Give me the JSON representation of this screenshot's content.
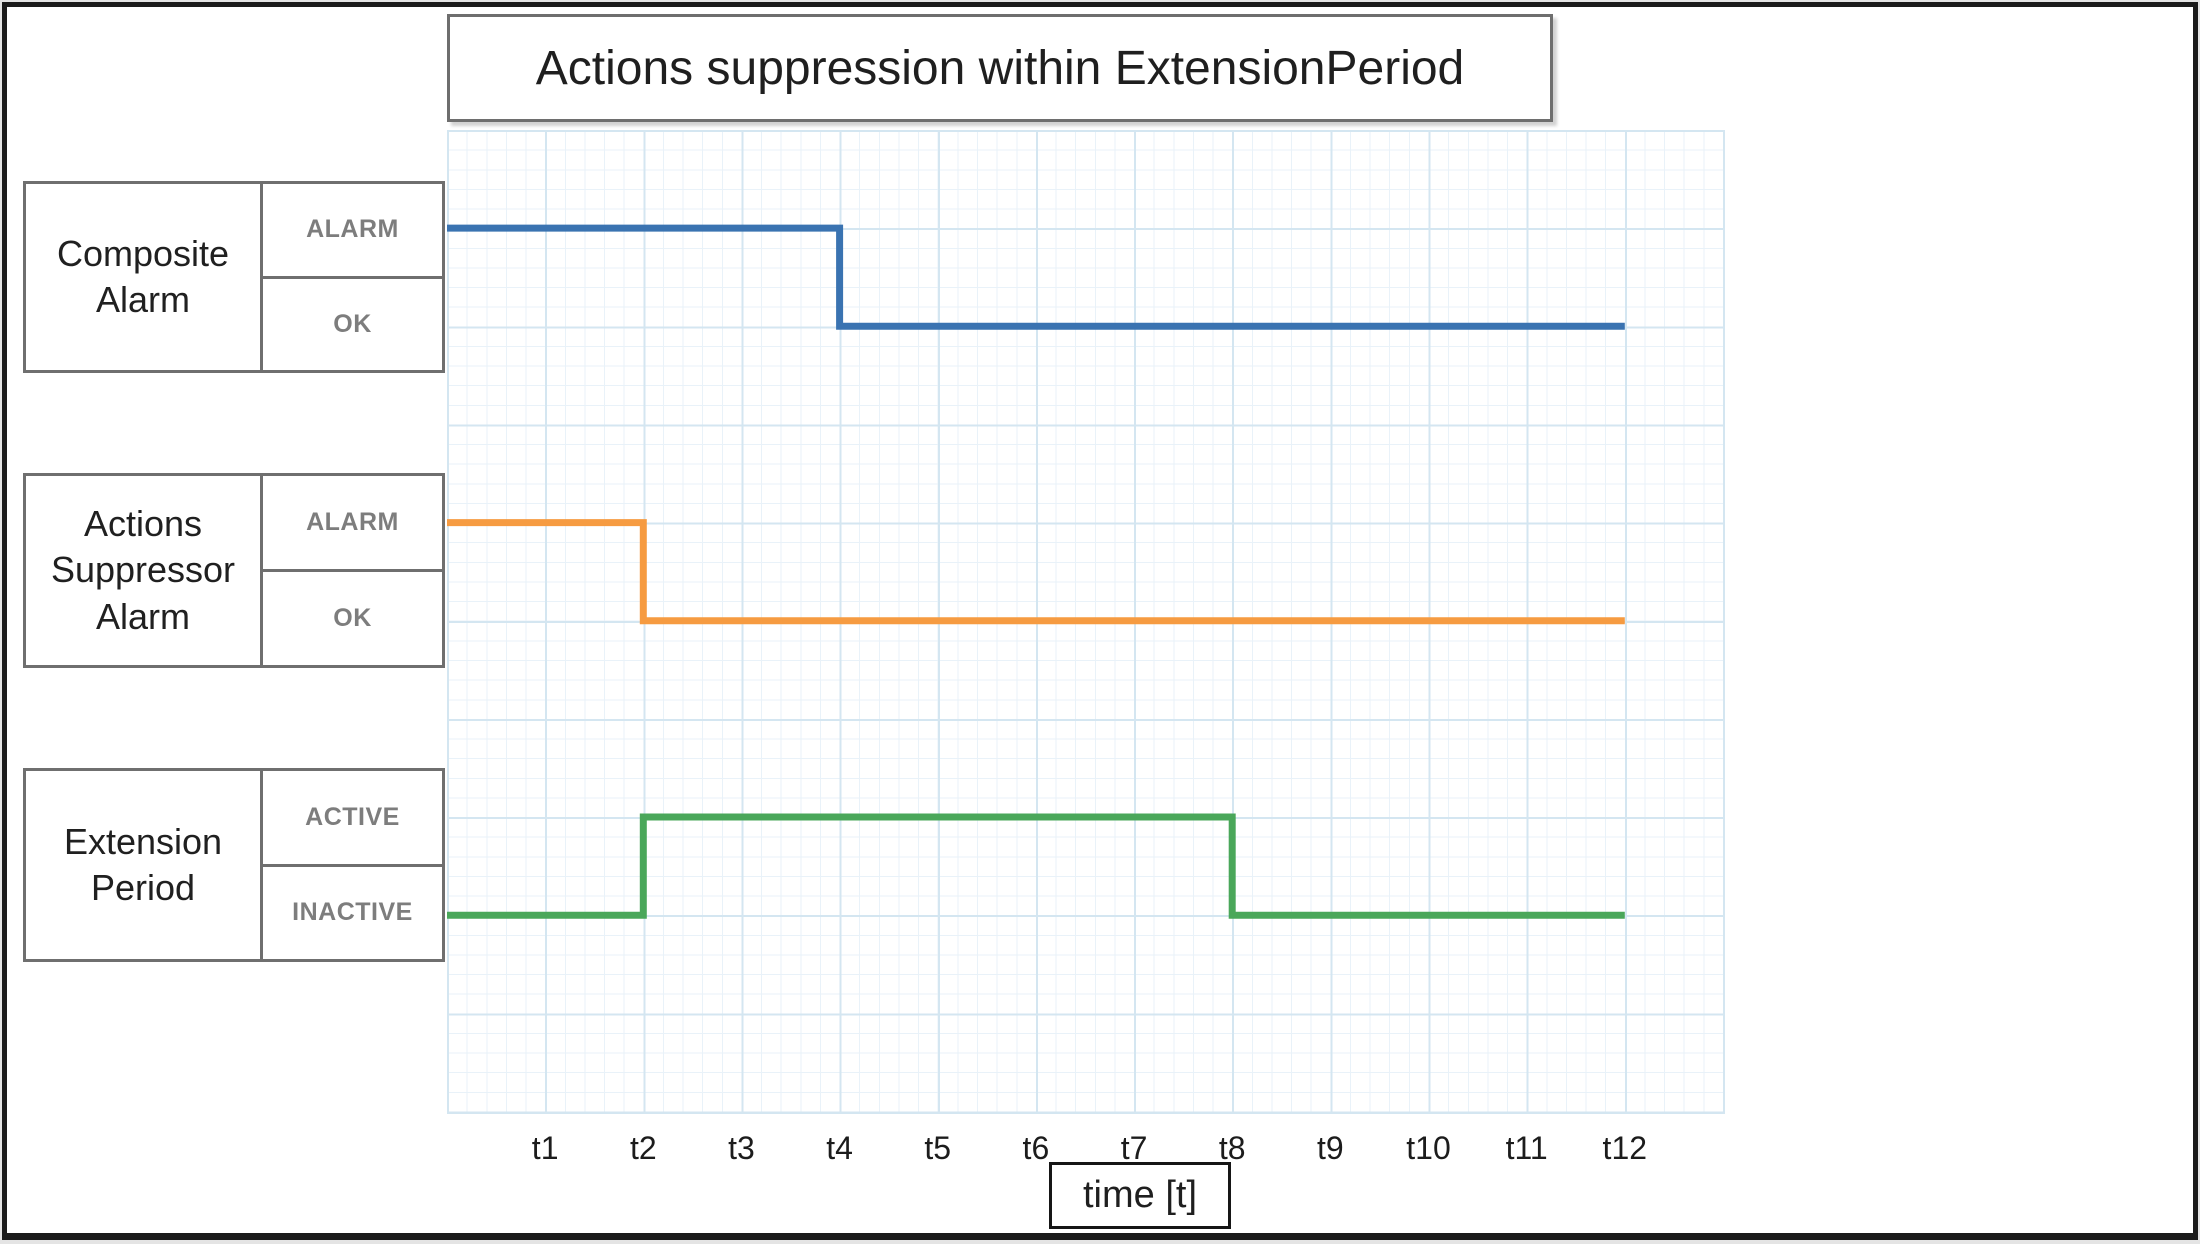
{
  "title": "Actions suppression within ExtensionPeriod",
  "x_axis": {
    "label": "time [t]",
    "ticks": [
      "t1",
      "t2",
      "t3",
      "t4",
      "t5",
      "t6",
      "t7",
      "t8",
      "t9",
      "t10",
      "t11",
      "t12"
    ]
  },
  "colors": {
    "composite_line": "#3a73b1",
    "suppressor_line": "#f69b41",
    "extension_line": "#4aa75a",
    "grid_major": "#d4e6f1",
    "grid_minor": "#e9f2f9",
    "box_border": "#6f6f6f",
    "state_text": "#7d7d7d",
    "frame_border": "#1b1b1b"
  },
  "signals": [
    {
      "id": "composite",
      "name": "Composite Alarm",
      "states": [
        "ALARM",
        "OK"
      ],
      "color": "#3a73b1",
      "timeline": [
        {
          "state": "ALARM",
          "from": 0,
          "to": 4
        },
        {
          "state": "OK",
          "from": 4,
          "to": 12
        }
      ]
    },
    {
      "id": "suppressor",
      "name": "Actions Suppressor Alarm",
      "states": [
        "ALARM",
        "OK"
      ],
      "color": "#f69b41",
      "timeline": [
        {
          "state": "ALARM",
          "from": 0,
          "to": 2
        },
        {
          "state": "OK",
          "from": 2,
          "to": 12
        }
      ]
    },
    {
      "id": "extension",
      "name": "Extension Period",
      "states": [
        "ACTIVE",
        "INACTIVE"
      ],
      "color": "#4aa75a",
      "timeline": [
        {
          "state": "INACTIVE",
          "from": 0,
          "to": 2
        },
        {
          "state": "ACTIVE",
          "from": 2,
          "to": 8
        },
        {
          "state": "INACTIVE",
          "from": 8,
          "to": 12
        }
      ]
    }
  ]
}
